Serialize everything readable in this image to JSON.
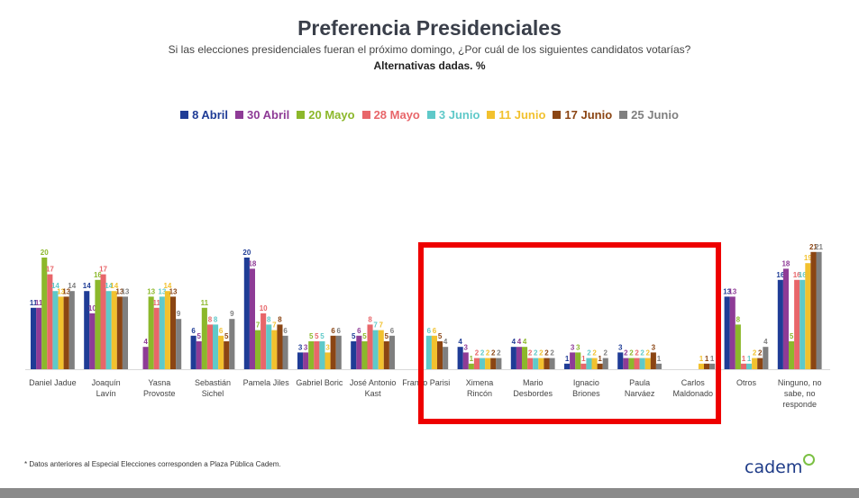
{
  "header": {
    "title": "Preferencia Presidenciales",
    "subtitle": "Si las elecciones presidenciales fueran el próximo domingo, ¿Por cuál de los siguientes candidatos votarías?",
    "subtitle2": "Alternativas dadas. %"
  },
  "footnote": "* Datos anteriores al Especial Elecciones corresponden a Plaza Pública Cadem.",
  "logo": "cadem",
  "colors": {
    "highlight_box": "#ee0000",
    "bottom_bar": "#8a8a8a"
  },
  "chart_data": {
    "type": "bar",
    "categories": [
      "Daniel Jadue",
      "Joaquín Lavín",
      "Yasna Provoste",
      "Sebastián Sichel",
      "Pamela Jiles",
      "Gabriel Boric",
      "José Antonio Kast",
      "Franco Parisi",
      "Ximena Rincón",
      "Mario Desbordes",
      "Ignacio Briones",
      "Paula Narváez",
      "Carlos Maldonado",
      "Otros",
      "Ninguno, no sabe, no responde"
    ],
    "category_lines": [
      [
        "Daniel Jadue"
      ],
      [
        "Joaquín",
        "Lavín"
      ],
      [
        "Yasna",
        "Provoste"
      ],
      [
        "Sebastián",
        "Sichel"
      ],
      [
        "Pamela Jiles"
      ],
      [
        "Gabriel Boric"
      ],
      [
        "José Antonio",
        "Kast"
      ],
      [
        "Franco Parisi"
      ],
      [
        "Ximena",
        "Rincón"
      ],
      [
        "Mario",
        "Desbordes"
      ],
      [
        "Ignacio",
        "Briones"
      ],
      [
        "Paula",
        "Narváez"
      ],
      [
        "Carlos",
        "Maldonado"
      ],
      [
        "Otros"
      ],
      [
        "Ninguno, no",
        "sabe, no",
        "responde"
      ]
    ],
    "series": [
      {
        "name": "8 Abril",
        "color": "#1f3c96",
        "values": [
          11,
          14,
          null,
          6,
          20,
          3,
          5,
          null,
          4,
          4,
          1,
          3,
          null,
          13,
          16
        ]
      },
      {
        "name": "30 Abril",
        "color": "#8e3b96",
        "values": [
          11,
          10,
          4,
          5,
          18,
          3,
          6,
          null,
          3,
          4,
          3,
          2,
          null,
          13,
          18
        ]
      },
      {
        "name": "20 Mayo",
        "color": "#8cb82b",
        "values": [
          20,
          16,
          13,
          11,
          7,
          5,
          5,
          null,
          1,
          4,
          3,
          2,
          null,
          8,
          5
        ]
      },
      {
        "name": "28 Mayo",
        "color": "#e8666a",
        "values": [
          17,
          17,
          11,
          8,
          10,
          5,
          8,
          null,
          2,
          2,
          1,
          2,
          null,
          1,
          16
        ]
      },
      {
        "name": "3 Junio",
        "color": "#5fc9c9",
        "values": [
          14,
          14,
          13,
          8,
          8,
          5,
          7,
          6,
          2,
          2,
          2,
          2,
          null,
          1,
          16
        ]
      },
      {
        "name": "11 Junio",
        "color": "#f2c12e",
        "values": [
          13,
          14,
          14,
          6,
          7,
          3,
          7,
          6,
          2,
          2,
          2,
          2,
          1,
          2,
          19
        ]
      },
      {
        "name": "17 Junio",
        "color": "#8b4513",
        "values": [
          13,
          13,
          13,
          5,
          8,
          6,
          5,
          5,
          2,
          2,
          1,
          3,
          1,
          2,
          21
        ]
      },
      {
        "name": "25 Junio",
        "color": "#7f7f7f",
        "values": [
          14,
          13,
          9,
          9,
          6,
          6,
          6,
          4,
          2,
          2,
          2,
          1,
          1,
          4,
          21
        ]
      }
    ],
    "legend_position": "top",
    "grid": false
  }
}
